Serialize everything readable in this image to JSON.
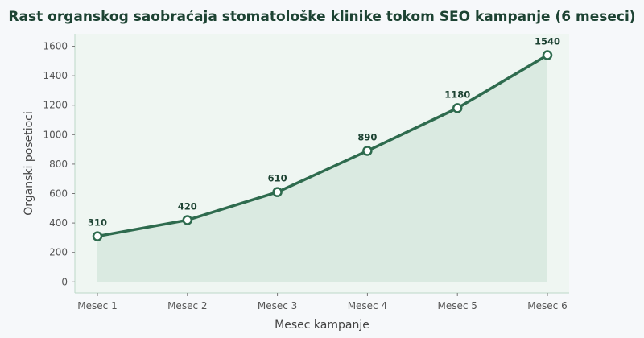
{
  "chart_data": {
    "type": "area",
    "title": "Rast organskog saobraćaja stomatološke klinike tokom SEO kampanje (6 meseci)",
    "xlabel": "Mesec kampanje",
    "ylabel": "Organski posetioci",
    "categories": [
      "Mesec 1",
      "Mesec 2",
      "Mesec 3",
      "Mesec 4",
      "Mesec 5",
      "Mesec 6"
    ],
    "series": [
      {
        "values": [
          310,
          420,
          610,
          890,
          1180,
          1540
        ]
      }
    ],
    "data_labels": [
      "310",
      "420",
      "610",
      "890",
      "1180",
      "1540"
    ],
    "y_ticks": [
      0,
      200,
      400,
      600,
      800,
      1000,
      1200,
      1400,
      1600
    ],
    "ylim": [
      -75,
      1685
    ],
    "grid": false,
    "legend": "none",
    "colors": {
      "line": "#2e6b4e",
      "fill": "#d6e8de",
      "marker_fill": "#ffffff",
      "plot_bg": "#eff6f2",
      "axis": "#bcd8c8",
      "title": "#1d4333"
    }
  }
}
